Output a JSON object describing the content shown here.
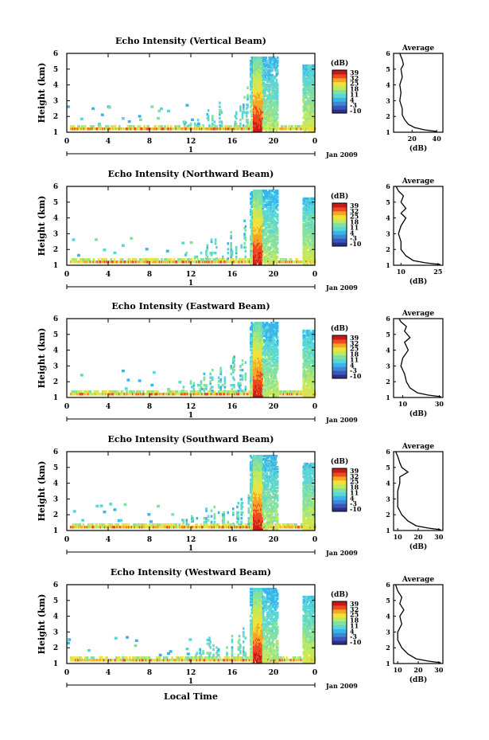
{
  "figure": {
    "bottom_label": "Local Time"
  },
  "chart_data": [
    {
      "type": "heatmap",
      "title": "Echo Intensity (Vertical Beam)",
      "ylabel": "Height (km)",
      "yticks": [
        "1",
        "2",
        "3",
        "4",
        "5",
        "6"
      ],
      "ylim": [
        1,
        6
      ],
      "xticks": [
        "0",
        "4",
        "8",
        "12",
        "16",
        "20",
        "0"
      ],
      "xlim": [
        0,
        24
      ],
      "day_label": "1",
      "date_label": "Jan 2009",
      "colorbar": {
        "unit": "(dB)",
        "ticks": [
          "39",
          "32",
          "25",
          "18",
          "11",
          "4",
          "-3",
          "-10"
        ],
        "range": [
          -10,
          39
        ]
      },
      "profile": {
        "title": "Average",
        "xlabel": "(dB)",
        "xticks": [
          "20",
          "40"
        ],
        "xlim": [
          5,
          45
        ],
        "yticks": [
          "1",
          "2",
          "3",
          "4",
          "5",
          "6"
        ],
        "points": [
          [
            40,
            1.05
          ],
          [
            30,
            1.15
          ],
          [
            22,
            1.3
          ],
          [
            17,
            1.5
          ],
          [
            14,
            1.8
          ],
          [
            12,
            2.1
          ],
          [
            12,
            2.5
          ],
          [
            10,
            3.0
          ],
          [
            11,
            3.5
          ],
          [
            10,
            4.0
          ],
          [
            12,
            4.5
          ],
          [
            11,
            5.0
          ],
          [
            13,
            5.3
          ],
          [
            12,
            5.6
          ],
          [
            11,
            5.8
          ],
          [
            10,
            6.0
          ]
        ]
      }
    },
    {
      "type": "heatmap",
      "title": "Echo Intensity (Northward Beam)",
      "ylabel": "Height (km)",
      "yticks": [
        "1",
        "2",
        "3",
        "4",
        "5",
        "6"
      ],
      "ylim": [
        1,
        6
      ],
      "xticks": [
        "0",
        "4",
        "8",
        "12",
        "16",
        "20",
        "0"
      ],
      "xlim": [
        0,
        24
      ],
      "day_label": "1",
      "date_label": "Jan 2009",
      "colorbar": {
        "unit": "(dB)",
        "ticks": [
          "39",
          "32",
          "25",
          "18",
          "11",
          "4",
          "-3",
          "-10"
        ],
        "range": [
          -10,
          39
        ]
      },
      "profile": {
        "title": "Average",
        "xlabel": "(dB)",
        "xticks": [
          "10",
          "25"
        ],
        "xlim": [
          7,
          27
        ],
        "yticks": [
          "1",
          "2",
          "3",
          "4",
          "5",
          "6"
        ],
        "points": [
          [
            26,
            1.05
          ],
          [
            20,
            1.15
          ],
          [
            15,
            1.3
          ],
          [
            12,
            1.6
          ],
          [
            10,
            2.0
          ],
          [
            10,
            2.5
          ],
          [
            9,
            3.0
          ],
          [
            10,
            3.5
          ],
          [
            12,
            4.0
          ],
          [
            10,
            4.3
          ],
          [
            12,
            4.6
          ],
          [
            10,
            5.0
          ],
          [
            11,
            5.4
          ],
          [
            9,
            5.7
          ],
          [
            8,
            6.0
          ]
        ]
      }
    },
    {
      "type": "heatmap",
      "title": "Echo Intensity (Eastward Beam)",
      "ylabel": "Height (km)",
      "yticks": [
        "1",
        "2",
        "3",
        "4",
        "5",
        "6"
      ],
      "ylim": [
        1,
        6
      ],
      "xticks": [
        "0",
        "4",
        "8",
        "12",
        "16",
        "20",
        "0"
      ],
      "xlim": [
        0,
        24
      ],
      "day_label": "1",
      "date_label": "Jan 2009",
      "colorbar": {
        "unit": "(dB)",
        "ticks": [
          "39",
          "32",
          "25",
          "18",
          "11",
          "4",
          "-3",
          "-10"
        ],
        "range": [
          -10,
          39
        ]
      },
      "profile": {
        "title": "Average",
        "xlabel": "(dB)",
        "xticks": [
          "10",
          "30"
        ],
        "xlim": [
          5,
          32
        ],
        "yticks": [
          "1",
          "2",
          "3",
          "4",
          "5",
          "6"
        ],
        "points": [
          [
            31,
            1.05
          ],
          [
            24,
            1.15
          ],
          [
            18,
            1.3
          ],
          [
            14,
            1.6
          ],
          [
            12,
            2.0
          ],
          [
            11,
            2.5
          ],
          [
            9,
            3.0
          ],
          [
            10,
            3.5
          ],
          [
            13,
            4.0
          ],
          [
            11,
            4.5
          ],
          [
            14,
            4.8
          ],
          [
            11,
            5.2
          ],
          [
            12,
            5.5
          ],
          [
            9,
            5.8
          ],
          [
            8,
            6.0
          ]
        ]
      }
    },
    {
      "type": "heatmap",
      "title": "Echo Intensity (Southward Beam)",
      "ylabel": "Height (km)",
      "yticks": [
        "1",
        "2",
        "3",
        "4",
        "5",
        "6"
      ],
      "ylim": [
        1,
        6
      ],
      "xticks": [
        "0",
        "4",
        "8",
        "12",
        "16",
        "20",
        "0"
      ],
      "xlim": [
        0,
        24
      ],
      "day_label": "1",
      "date_label": "Jan 2009",
      "colorbar": {
        "unit": "(dB)",
        "ticks": [
          "39",
          "32",
          "25",
          "18",
          "11",
          "4",
          "-3",
          "-10"
        ],
        "range": [
          -10,
          39
        ]
      },
      "profile": {
        "title": "Average",
        "xlabel": "(dB)",
        "xticks": [
          "10",
          "20",
          "30"
        ],
        "xlim": [
          8,
          32
        ],
        "yticks": [
          "1",
          "2",
          "3",
          "4",
          "5",
          "6"
        ],
        "points": [
          [
            31,
            1.05
          ],
          [
            25,
            1.15
          ],
          [
            19,
            1.3
          ],
          [
            15,
            1.6
          ],
          [
            12,
            2.0
          ],
          [
            10,
            2.5
          ],
          [
            10,
            3.0
          ],
          [
            10,
            3.5
          ],
          [
            11,
            4.0
          ],
          [
            11,
            4.4
          ],
          [
            15,
            4.7
          ],
          [
            12,
            5.0
          ],
          [
            11,
            5.3
          ],
          [
            10,
            5.7
          ],
          [
            9,
            6.0
          ]
        ]
      }
    },
    {
      "type": "heatmap",
      "title": "Echo Intensity (Westward Beam)",
      "ylabel": "Height (km)",
      "yticks": [
        "1",
        "2",
        "3",
        "4",
        "5",
        "6"
      ],
      "ylim": [
        1,
        6
      ],
      "xticks": [
        "0",
        "4",
        "8",
        "12",
        "16",
        "20",
        "0"
      ],
      "xlim": [
        0,
        24
      ],
      "day_label": "1",
      "date_label": "Jan 2009",
      "colorbar": {
        "unit": "(dB)",
        "ticks": [
          "39",
          "32",
          "25",
          "18",
          "11",
          "4",
          "-3",
          "-10"
        ],
        "range": [
          -10,
          39
        ]
      },
      "profile": {
        "title": "Average",
        "xlabel": "(dB)",
        "xticks": [
          "10",
          "20",
          "30"
        ],
        "xlim": [
          8,
          32
        ],
        "yticks": [
          "1",
          "2",
          "3",
          "4",
          "5",
          "6"
        ],
        "points": [
          [
            31,
            1.05
          ],
          [
            25,
            1.15
          ],
          [
            19,
            1.3
          ],
          [
            15,
            1.6
          ],
          [
            12,
            2.0
          ],
          [
            10,
            2.5
          ],
          [
            10,
            3.0
          ],
          [
            12,
            3.5
          ],
          [
            11,
            4.0
          ],
          [
            13,
            4.4
          ],
          [
            11,
            4.8
          ],
          [
            12,
            5.2
          ],
          [
            10,
            5.6
          ],
          [
            9,
            6.0
          ]
        ]
      }
    }
  ]
}
